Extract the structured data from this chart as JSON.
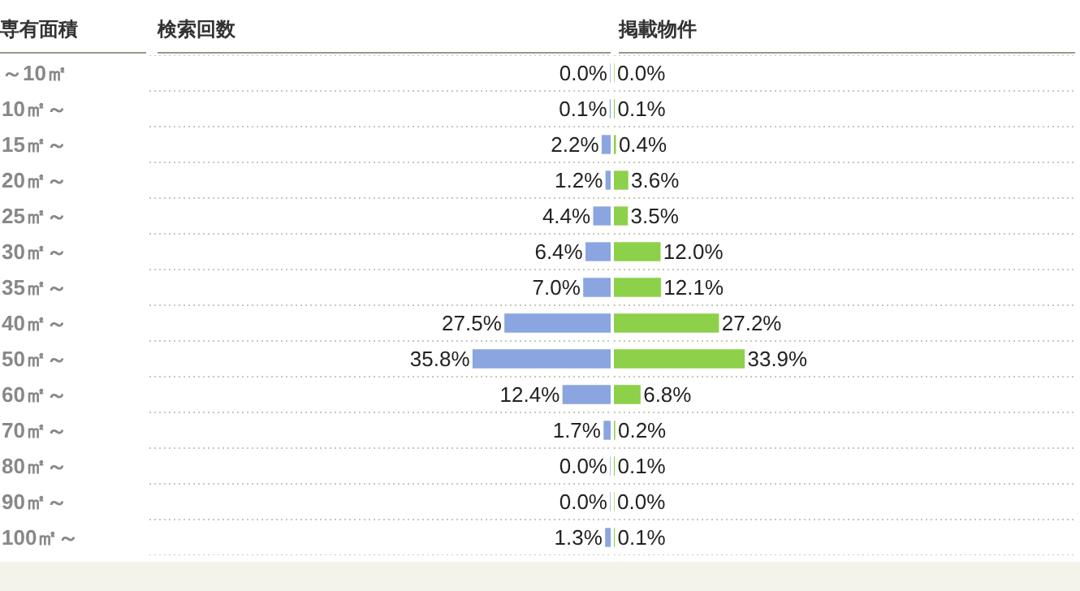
{
  "chart_data": [
    {
      "type": "bar",
      "orientation": "horizontal",
      "ylabel": "専有面積",
      "title": "検索回数",
      "categories": [
        "～10㎡",
        "10㎡～",
        "15㎡～",
        "20㎡～",
        "25㎡～",
        "30㎡～",
        "35㎡～",
        "40㎡～",
        "50㎡～",
        "60㎡～",
        "70㎡～",
        "80㎡～",
        "90㎡～",
        "100㎡～"
      ],
      "series": [
        {
          "color": "#8aa5df",
          "values": [
            0.0,
            0.1,
            2.2,
            1.2,
            4.4,
            6.4,
            7.0,
            27.5,
            35.8,
            12.4,
            1.7,
            0.0,
            0.0,
            1.3
          ],
          "value_labels": [
            "0.0%",
            "0.1%",
            "2.2%",
            "1.2%",
            "4.4%",
            "6.4%",
            "7.0%",
            "27.5%",
            "35.8%",
            "12.4%",
            "1.7%",
            "0.0%",
            "0.0%",
            "1.3%"
          ]
        }
      ],
      "xlim": [
        120,
        0
      ],
      "grid": "y",
      "tick_labels": "y",
      "legend": false
    },
    {
      "type": "bar",
      "orientation": "horizontal",
      "title": "掲載物件",
      "categories": [
        null,
        null,
        null,
        null,
        null,
        null,
        null,
        null,
        null,
        null,
        null,
        null,
        null,
        null
      ],
      "series": [
        {
          "color": "#8dd04a",
          "values": [
            0.0,
            0.1,
            0.4,
            3.6,
            3.5,
            12.0,
            12.1,
            27.2,
            33.9,
            6.8,
            0.2,
            0.1,
            0.0,
            0.1
          ],
          "value_labels": [
            "0.0%",
            "0.1%",
            "0.4%",
            "3.6%",
            "3.5%",
            "12.0%",
            "12.1%",
            "27.2%",
            "33.9%",
            "6.8%",
            "0.2%",
            "0.1%",
            "0.0%",
            "0.1%"
          ]
        }
      ],
      "xlim": [
        0,
        120
      ],
      "grid": "y",
      "tick_labels": false,
      "legend": false
    }
  ]
}
